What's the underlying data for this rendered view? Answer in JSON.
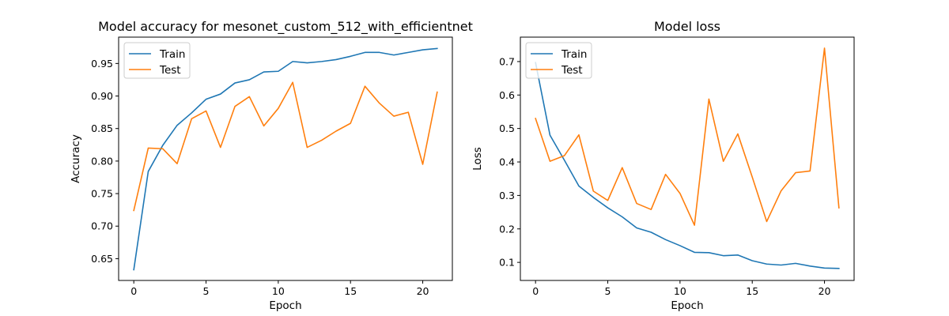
{
  "chart_data": [
    {
      "type": "line",
      "title": "Model accuracy for mesonet_custom_512_with_efficientnet",
      "xlabel": "Epoch",
      "ylabel": "Accuracy",
      "x": [
        0,
        1,
        2,
        3,
        4,
        5,
        6,
        7,
        8,
        9,
        10,
        11,
        12,
        13,
        14,
        15,
        16,
        17,
        18,
        19,
        20,
        21
      ],
      "xlim": [
        -1.05,
        22.05
      ],
      "ylim": [
        0.6165,
        0.9905
      ],
      "xticks": [
        0,
        5,
        10,
        15,
        20
      ],
      "yticks": [
        0.65,
        0.7,
        0.75,
        0.8,
        0.85,
        0.9,
        0.95
      ],
      "ytick_labels": [
        "0.65",
        "0.70",
        "0.75",
        "0.80",
        "0.85",
        "0.90",
        "0.95"
      ],
      "legend": "top-left",
      "grid": false,
      "series": [
        {
          "name": "Train",
          "color": "#1f77b4",
          "values": [
            0.633,
            0.784,
            0.824,
            0.855,
            0.874,
            0.895,
            0.903,
            0.92,
            0.925,
            0.937,
            0.938,
            0.953,
            0.951,
            0.953,
            0.956,
            0.961,
            0.967,
            0.967,
            0.963,
            0.967,
            0.971,
            0.973
          ]
        },
        {
          "name": "Test",
          "color": "#ff7f0e",
          "values": [
            0.724,
            0.82,
            0.819,
            0.796,
            0.865,
            0.877,
            0.821,
            0.884,
            0.899,
            0.854,
            0.881,
            0.921,
            0.821,
            0.832,
            0.846,
            0.858,
            0.915,
            0.889,
            0.869,
            0.875,
            0.795,
            0.906
          ]
        }
      ]
    },
    {
      "type": "line",
      "title": "Model loss",
      "xlabel": "Epoch",
      "ylabel": "Loss",
      "x": [
        0,
        1,
        2,
        3,
        4,
        5,
        6,
        7,
        8,
        9,
        10,
        11,
        12,
        13,
        14,
        15,
        16,
        17,
        18,
        19,
        20,
        21
      ],
      "xlim": [
        -1.05,
        22.05
      ],
      "ylim": [
        0.046,
        0.773
      ],
      "xticks": [
        0,
        5,
        10,
        15,
        20
      ],
      "yticks": [
        0.1,
        0.2,
        0.3,
        0.4,
        0.5,
        0.6,
        0.7
      ],
      "ytick_labels": [
        "0.1",
        "0.2",
        "0.3",
        "0.4",
        "0.5",
        "0.6",
        "0.7"
      ],
      "legend": "top-left",
      "grid": false,
      "series": [
        {
          "name": "Train",
          "color": "#1f77b4",
          "values": [
            0.697,
            0.48,
            0.405,
            0.328,
            0.294,
            0.263,
            0.236,
            0.203,
            0.19,
            0.168,
            0.15,
            0.13,
            0.129,
            0.12,
            0.122,
            0.105,
            0.095,
            0.092,
            0.097,
            0.089,
            0.083,
            0.082
          ]
        },
        {
          "name": "Test",
          "color": "#ff7f0e",
          "values": [
            0.53,
            0.402,
            0.419,
            0.481,
            0.313,
            0.285,
            0.383,
            0.276,
            0.258,
            0.363,
            0.306,
            0.211,
            0.588,
            0.402,
            0.484,
            0.355,
            0.222,
            0.314,
            0.368,
            0.373,
            0.74,
            0.263
          ]
        }
      ]
    }
  ]
}
